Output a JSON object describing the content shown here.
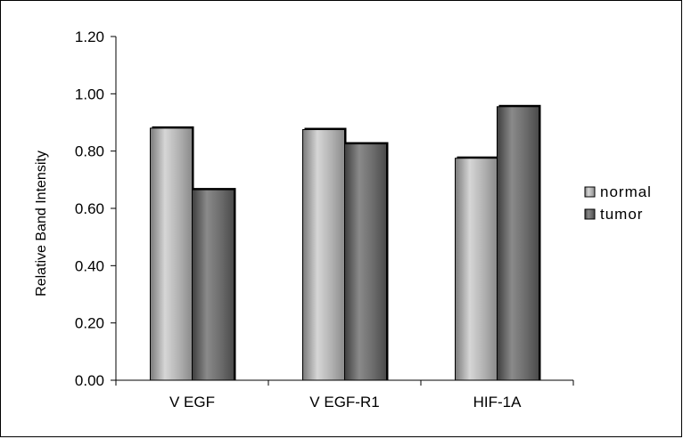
{
  "chart_data": {
    "type": "bar",
    "categories": [
      "V EGF",
      "V EGF-R1",
      "HIF-1A"
    ],
    "series": [
      {
        "name": "normal",
        "values": [
          0.88,
          0.875,
          0.775
        ],
        "color": "#b8b8b8"
      },
      {
        "name": "tumor",
        "values": [
          0.665,
          0.825,
          0.955
        ],
        "color": "#6a6a6a"
      }
    ],
    "ylabel": "Relative Band Intensity",
    "xlabel": "",
    "title": "",
    "ylim": [
      0,
      1.2
    ],
    "yticks": [
      "0.00",
      "0.20",
      "0.40",
      "0.60",
      "0.80",
      "1.00",
      "1.20"
    ],
    "grid": false,
    "legend_position": "right"
  }
}
